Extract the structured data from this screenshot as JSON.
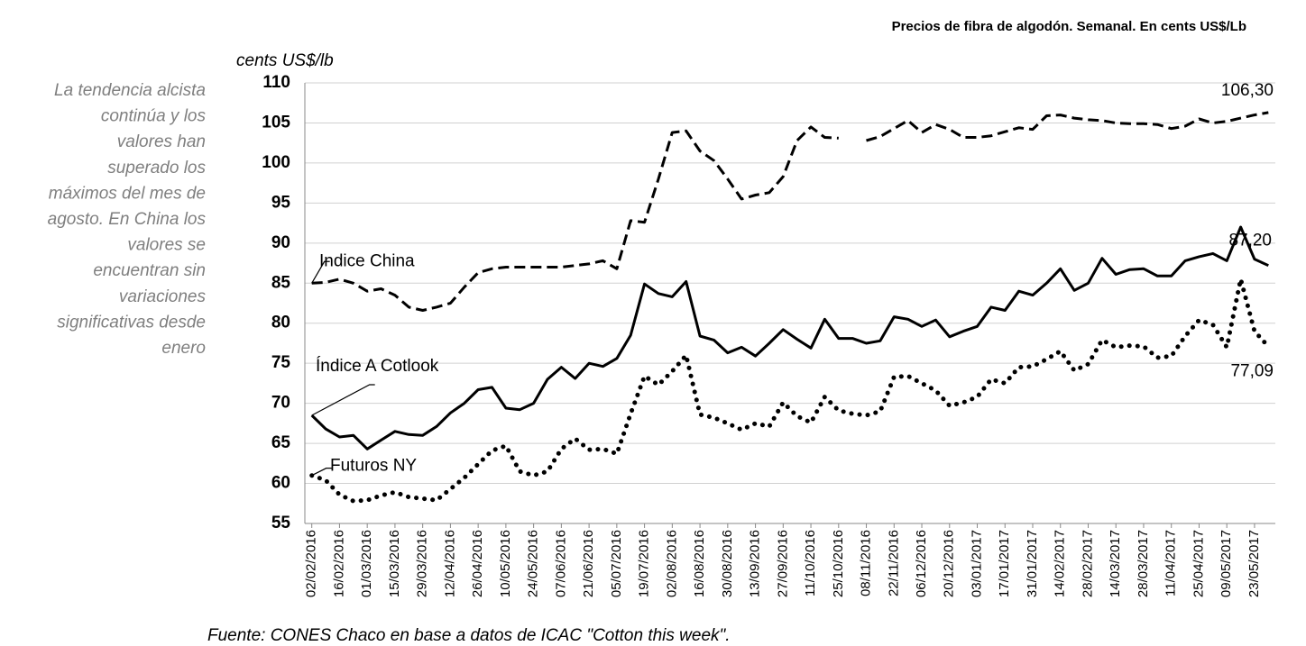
{
  "chart_data": {
    "type": "line",
    "title": "Precios de fibra de algodón. Semanal. En cents US$/Lb",
    "y_label": "cents US$/lb",
    "source": "Fuente: CONES Chaco en base a datos de  ICAC \"Cotton this week\".",
    "side_note": [
      "La tendencia alcista",
      "continúa y los",
      "valores han",
      "superado los",
      "máximos del mes de",
      "agosto. En China los",
      "valores se",
      "encuentran sin",
      "variaciones",
      "significativas desde",
      "enero"
    ],
    "categories": [
      "02/02/2016",
      null,
      "16/02/2016",
      null,
      "01/03/2016",
      null,
      "15/03/2016",
      null,
      "29/03/2016",
      null,
      "12/04/2016",
      null,
      "26/04/2016",
      null,
      "10/05/2016",
      null,
      "24/05/2016",
      null,
      "07/06/2016",
      null,
      "21/06/2016",
      null,
      "05/07/2016",
      null,
      "19/07/2016",
      null,
      "02/08/2016",
      null,
      "16/08/2016",
      null,
      "30/08/2016",
      null,
      "13/09/2016",
      null,
      "27/09/2016",
      null,
      "11/10/2016",
      null,
      "25/10/2016",
      null,
      "08/11/2016",
      null,
      "22/11/2016",
      null,
      "06/12/2016",
      null,
      "20/12/2016",
      null,
      "03/01/2017",
      null,
      "17/01/2017",
      null,
      "31/01/2017",
      null,
      "14/02/2017",
      null,
      "28/02/2017",
      null,
      "14/03/2017",
      null,
      "28/03/2017",
      null,
      "11/04/2017",
      null,
      "25/04/2017",
      null,
      "09/05/2017",
      null,
      "23/05/2017",
      null
    ],
    "ylim": [
      55,
      110
    ],
    "yticks": [
      55,
      60,
      65,
      70,
      75,
      80,
      85,
      90,
      95,
      100,
      105,
      110
    ],
    "grid": true,
    "series": [
      {
        "name": "Indice China",
        "color": "#000000",
        "dash": "dashed",
        "values": [
          85,
          85.1,
          85.5,
          85,
          84,
          84.3,
          83.5,
          82,
          81.6,
          82,
          82.5,
          84.5,
          86.3,
          86.8,
          87,
          87,
          87,
          87,
          87,
          87.2,
          87.4,
          87.8,
          86.8,
          92.8,
          92.6,
          98,
          103.8,
          104,
          101.5,
          100.3,
          98,
          95.5,
          96,
          96.3,
          98.3,
          102.8,
          104.5,
          103.2,
          103.1,
          null,
          102.8,
          103.3,
          104.3,
          105.3,
          103.8,
          104.8,
          104.2,
          103.2,
          103.2,
          103.4,
          103.9,
          104.4,
          104.2,
          105.9,
          106,
          105.6,
          105.4,
          105.3,
          105,
          104.9,
          104.9,
          104.8,
          104.3,
          104.6,
          105.5,
          105,
          105.2,
          105.6,
          106,
          106.3
        ],
        "value_labels": [
          null,
          null,
          null,
          null,
          null,
          null,
          null,
          null,
          null,
          null,
          null,
          null,
          null,
          null,
          null,
          null,
          null,
          null,
          null,
          null,
          null,
          null,
          null,
          null,
          null,
          null,
          null,
          null,
          null,
          null,
          null,
          null,
          null,
          null,
          null,
          null,
          null,
          null,
          null,
          null,
          null,
          null,
          null,
          null,
          null,
          null,
          null,
          null,
          null,
          null,
          null,
          null,
          null,
          null,
          null,
          null,
          null,
          null,
          null,
          null,
          null,
          null,
          null,
          null,
          null,
          null,
          null,
          null,
          null,
          "106,30"
        ]
      },
      {
        "name": "Índice A Cotlook",
        "color": "#000000",
        "dash": "solid",
        "values": [
          68.5,
          66.8,
          65.8,
          66,
          64.3,
          65.4,
          66.5,
          66.1,
          66,
          67.1,
          68.8,
          70,
          71.7,
          72,
          69.4,
          69.2,
          70,
          73,
          74.5,
          73.1,
          75,
          74.6,
          75.6,
          78.5,
          84.9,
          83.7,
          83.3,
          85.2,
          78.4,
          77.9,
          76.3,
          77,
          75.9,
          77.5,
          79.2,
          78,
          76.9,
          80.5,
          78.1,
          78.1,
          77.5,
          77.8,
          80.8,
          80.5,
          79.6,
          80.4,
          78.3,
          79,
          79.6,
          82,
          81.6,
          84,
          83.5,
          85,
          86.8,
          84.1,
          85,
          88.1,
          86.1,
          86.7,
          86.8,
          85.9,
          85.9,
          87.8,
          88.3,
          88.7,
          87.8,
          92,
          88,
          87.2
        ],
        "value_labels": [
          null,
          null,
          null,
          null,
          null,
          null,
          null,
          null,
          null,
          null,
          null,
          null,
          null,
          null,
          null,
          null,
          null,
          null,
          null,
          null,
          null,
          null,
          null,
          null,
          null,
          null,
          null,
          null,
          null,
          null,
          null,
          null,
          null,
          null,
          null,
          null,
          null,
          null,
          null,
          null,
          null,
          null,
          null,
          null,
          null,
          null,
          null,
          null,
          null,
          null,
          null,
          null,
          null,
          null,
          null,
          null,
          null,
          null,
          null,
          null,
          null,
          null,
          null,
          null,
          null,
          null,
          null,
          null,
          null,
          "87,20"
        ]
      },
      {
        "name": "Futuros NY",
        "color": "#000000",
        "dash": "dotted",
        "values": [
          61,
          60.4,
          58.6,
          57.8,
          57.9,
          58.5,
          58.9,
          58.3,
          58.1,
          57.9,
          59.3,
          60.7,
          62.4,
          64.1,
          64.7,
          61.5,
          61,
          61.5,
          64.3,
          65.6,
          64.2,
          64.3,
          63.7,
          68.7,
          73.4,
          72.3,
          74,
          76,
          68.6,
          68.2,
          67.5,
          66.7,
          67.5,
          67.1,
          70.1,
          68.4,
          67.6,
          70.8,
          69.1,
          68.7,
          68.5,
          69,
          73.3,
          73.4,
          72.5,
          71.6,
          69.7,
          70.1,
          70.8,
          73,
          72.5,
          74.5,
          74.6,
          75.5,
          76.5,
          74.1,
          74.9,
          77.9,
          77,
          77.2,
          77.1,
          75.7,
          75.9,
          78.4,
          80.4,
          79.8,
          77,
          85.5,
          79,
          77.09
        ],
        "value_labels": [
          null,
          null,
          null,
          null,
          null,
          null,
          null,
          null,
          null,
          null,
          null,
          null,
          null,
          null,
          null,
          null,
          null,
          null,
          null,
          null,
          null,
          null,
          null,
          null,
          null,
          null,
          null,
          null,
          null,
          null,
          null,
          null,
          null,
          null,
          null,
          null,
          null,
          null,
          null,
          null,
          null,
          null,
          null,
          null,
          null,
          null,
          null,
          null,
          null,
          null,
          null,
          null,
          null,
          null,
          null,
          null,
          null,
          null,
          null,
          null,
          null,
          null,
          null,
          null,
          null,
          null,
          null,
          null,
          null,
          "77,09"
        ]
      }
    ]
  }
}
